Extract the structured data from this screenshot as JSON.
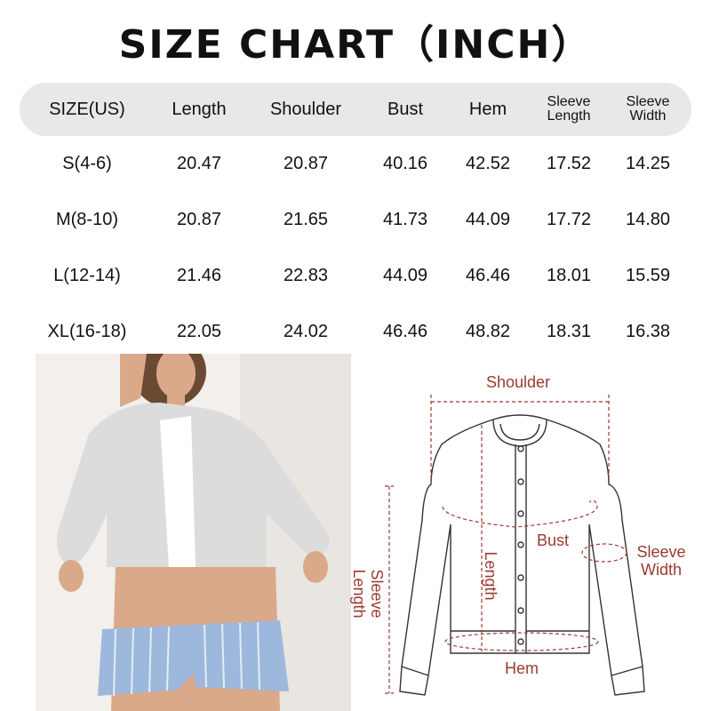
{
  "title": "SIZE CHART（INCH）",
  "table": {
    "headers": [
      "SIZE(US)",
      "Length",
      "Shoulder",
      "Bust",
      "Hem",
      "Sleeve Length",
      "Sleeve Width"
    ],
    "header_lines": {
      "sleeve_length": [
        "Sleeve",
        "Length"
      ],
      "sleeve_width": [
        "Sleeve",
        "Width"
      ]
    },
    "rows": [
      [
        "S(4-6)",
        "20.47",
        "20.87",
        "40.16",
        "42.52",
        "17.52",
        "14.25"
      ],
      [
        "M(8-10)",
        "20.87",
        "21.65",
        "41.73",
        "44.09",
        "17.72",
        "14.80"
      ],
      [
        "L(12-14)",
        "21.46",
        "22.83",
        "44.09",
        "46.46",
        "18.01",
        "15.59"
      ],
      [
        "XL(16-18)",
        "22.05",
        "24.02",
        "46.46",
        "48.82",
        "18.31",
        "16.38"
      ]
    ]
  },
  "diagram": {
    "shoulder": "Shoulder",
    "bust": "Bust",
    "length": "Length",
    "hem": "Hem",
    "sleeve_length": [
      "Sleeve",
      "Length"
    ],
    "sleeve_width": [
      "Sleeve",
      "Width"
    ]
  },
  "colors": {
    "header_bg": "#e8e8e8",
    "measure": "#9b3a2e",
    "cardigan": "#d9d9d9",
    "shorts": "#9db8dc"
  }
}
